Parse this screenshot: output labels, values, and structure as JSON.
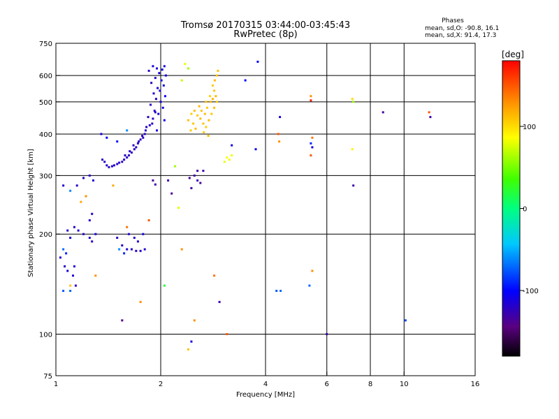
{
  "chart_data": {
    "type": "scatter",
    "title": "Tromsø 20170315 03:44:00-03:45:43",
    "subtitle": "RwPretec (8p)",
    "stats": {
      "heading": "Phases",
      "line1": "mean, sd,O: -90.8, 16.1",
      "line2": "mean, sd,X:  91.4, 17.3"
    },
    "xlabel": "Frequency [MHz]",
    "ylabel": "Stationary phase Virtual Height [km]",
    "xscale": "log",
    "yscale": "log",
    "xlim": [
      1,
      16
    ],
    "ylim": [
      75,
      750
    ],
    "xticks": [
      1,
      2,
      4,
      6,
      8,
      10,
      16
    ],
    "xtick_labels": [
      "1",
      "2",
      "4",
      "6",
      "8",
      "10",
      "16"
    ],
    "xgrid": [
      2,
      4,
      6,
      8,
      10
    ],
    "yticks": [
      75,
      100,
      200,
      300,
      400,
      500,
      600,
      750
    ],
    "ytick_labels": [
      "75",
      "100",
      "200",
      "300",
      "400",
      "500",
      "600",
      "750"
    ],
    "ygrid": [
      100,
      200,
      300,
      400,
      500,
      600
    ],
    "grid": true,
    "colorbar": {
      "label": "[deg]",
      "range": [
        -180,
        180
      ],
      "ticks": [
        100,
        0,
        -100
      ],
      "tick_labels": [
        "100",
        "0",
        "-100"
      ]
    },
    "points": [
      [
        1.9,
        640,
        -110
      ],
      [
        2.05,
        640,
        -110
      ],
      [
        1.95,
        630,
        -115
      ],
      [
        2.02,
        625,
        -105
      ],
      [
        1.85,
        620,
        -120
      ],
      [
        1.98,
        610,
        -112
      ],
      [
        2.07,
        600,
        -108
      ],
      [
        1.93,
        590,
        -118
      ],
      [
        2.01,
        580,
        -110
      ],
      [
        1.88,
        570,
        -122
      ],
      [
        2.04,
        560,
        -106
      ],
      [
        1.96,
        550,
        -114
      ],
      [
        1.99,
        540,
        -109
      ],
      [
        1.91,
        530,
        -116
      ],
      [
        2.06,
        520,
        -104
      ],
      [
        1.94,
        510,
        -113
      ],
      [
        2.0,
        500,
        -111
      ],
      [
        1.87,
        490,
        -119
      ],
      [
        2.03,
        480,
        -107
      ],
      [
        1.92,
        470,
        -117
      ],
      [
        1.97,
        460,
        -110
      ],
      [
        1.84,
        450,
        -121
      ],
      [
        2.05,
        440,
        -105
      ],
      [
        1.89,
        430,
        -118
      ],
      [
        1.82,
        420,
        -120
      ],
      [
        1.95,
        410,
        -112
      ],
      [
        1.8,
        400,
        -123
      ],
      [
        1.78,
        390,
        -122
      ],
      [
        1.75,
        385,
        -125
      ],
      [
        1.72,
        375,
        -120
      ],
      [
        1.7,
        365,
        -118
      ],
      [
        1.68,
        360,
        -122
      ],
      [
        1.65,
        352,
        -124
      ],
      [
        1.62,
        345,
        -119
      ],
      [
        1.6,
        340,
        -121
      ],
      [
        1.57,
        335,
        -117
      ],
      [
        1.55,
        330,
        -120
      ],
      [
        1.52,
        328,
        -118
      ],
      [
        1.5,
        325,
        -122
      ],
      [
        1.47,
        322,
        -116
      ],
      [
        1.45,
        320,
        -119
      ],
      [
        1.42,
        318,
        -121
      ],
      [
        1.4,
        322,
        -115
      ],
      [
        1.38,
        330,
        -118
      ],
      [
        1.36,
        335,
        -120
      ],
      [
        1.58,
        345,
        -117
      ],
      [
        1.63,
        355,
        -120
      ],
      [
        1.67,
        370,
        -122
      ],
      [
        1.73,
        380,
        -119
      ],
      [
        1.77,
        395,
        -121
      ],
      [
        1.81,
        410,
        -118
      ],
      [
        1.86,
        425,
        -116
      ],
      [
        1.9,
        445,
        -119
      ],
      [
        1.93,
        465,
        -117
      ],
      [
        1.35,
        400,
        -110
      ],
      [
        1.4,
        390,
        -105
      ],
      [
        1.6,
        410,
        -60
      ],
      [
        1.5,
        380,
        -95
      ],
      [
        1.25,
        300,
        -115
      ],
      [
        1.2,
        295,
        -118
      ],
      [
        1.28,
        290,
        -112
      ],
      [
        1.15,
        280,
        -120
      ],
      [
        1.1,
        270,
        -60
      ],
      [
        1.05,
        280,
        -115
      ],
      [
        1.13,
        210,
        -118
      ],
      [
        1.16,
        205,
        -114
      ],
      [
        1.2,
        200,
        -120
      ],
      [
        1.25,
        195,
        -116
      ],
      [
        1.27,
        190,
        -118
      ],
      [
        1.25,
        220,
        -114
      ],
      [
        1.27,
        230,
        -120
      ],
      [
        1.3,
        200,
        -110
      ],
      [
        1.08,
        205,
        -117
      ],
      [
        1.1,
        195,
        -112
      ],
      [
        1.05,
        180,
        -70
      ],
      [
        1.07,
        175,
        -90
      ],
      [
        1.03,
        170,
        -115
      ],
      [
        1.06,
        160,
        -118
      ],
      [
        1.12,
        150,
        -116
      ],
      [
        1.14,
        140,
        -120
      ],
      [
        1.1,
        135,
        -70
      ],
      [
        1.05,
        135,
        -75
      ],
      [
        1.08,
        155,
        -110
      ],
      [
        1.13,
        160,
        -116
      ],
      [
        1.5,
        195,
        -118
      ],
      [
        1.55,
        185,
        -120
      ],
      [
        1.6,
        180,
        -117
      ],
      [
        1.65,
        180,
        -119
      ],
      [
        1.7,
        178,
        -121
      ],
      [
        1.75,
        178,
        -115
      ],
      [
        1.8,
        180,
        -118
      ],
      [
        1.62,
        200,
        -115
      ],
      [
        1.68,
        195,
        -120
      ],
      [
        1.72,
        190,
        -117
      ],
      [
        1.52,
        180,
        -60
      ],
      [
        1.57,
        175,
        -90
      ],
      [
        1.78,
        200,
        -110
      ],
      [
        1.85,
        220,
        150
      ],
      [
        1.6,
        210,
        140
      ],
      [
        1.22,
        260,
        130
      ],
      [
        1.46,
        280,
        120
      ],
      [
        1.3,
        150,
        130
      ],
      [
        1.18,
        250,
        120
      ],
      [
        1.9,
        290,
        -135
      ],
      [
        1.93,
        282,
        -130
      ],
      [
        2.15,
        265,
        -135
      ],
      [
        2.1,
        290,
        -128
      ],
      [
        2.42,
        295,
        -135
      ],
      [
        2.5,
        300,
        -130
      ],
      [
        2.55,
        290,
        -125
      ],
      [
        2.6,
        285,
        -135
      ],
      [
        2.45,
        275,
        -130
      ],
      [
        2.65,
        310,
        -128
      ],
      [
        2.55,
        310,
        -132
      ],
      [
        2.4,
        440,
        110
      ],
      [
        2.45,
        460,
        105
      ],
      [
        2.5,
        470,
        112
      ],
      [
        2.55,
        455,
        108
      ],
      [
        2.6,
        445,
        115
      ],
      [
        2.65,
        430,
        110
      ],
      [
        2.7,
        420,
        106
      ],
      [
        2.75,
        440,
        113
      ],
      [
        2.8,
        460,
        109
      ],
      [
        2.85,
        480,
        112
      ],
      [
        2.9,
        500,
        108
      ],
      [
        2.88,
        520,
        114
      ],
      [
        2.85,
        540,
        110
      ],
      [
        2.82,
        560,
        107
      ],
      [
        2.86,
        580,
        113
      ],
      [
        2.9,
        600,
        109
      ],
      [
        2.92,
        620,
        111
      ],
      [
        2.78,
        500,
        115
      ],
      [
        2.72,
        480,
        108
      ],
      [
        2.68,
        460,
        112
      ],
      [
        2.62,
        470,
        109
      ],
      [
        2.58,
        485,
        113
      ],
      [
        2.48,
        430,
        110
      ],
      [
        2.44,
        410,
        107
      ],
      [
        2.52,
        415,
        112
      ],
      [
        2.66,
        405,
        108
      ],
      [
        2.74,
        395,
        111
      ],
      [
        2.82,
        510,
        116
      ],
      [
        2.77,
        520,
        104
      ],
      [
        2.7,
        500,
        110
      ],
      [
        3.1,
        340,
        85
      ],
      [
        3.15,
        335,
        90
      ],
      [
        3.05,
        330,
        80
      ],
      [
        3.2,
        345,
        82
      ],
      [
        2.35,
        650,
        80
      ],
      [
        2.4,
        630,
        60
      ],
      [
        2.3,
        580,
        70
      ],
      [
        2.2,
        320,
        60
      ],
      [
        2.25,
        240,
        80
      ],
      [
        2.3,
        180,
        130
      ],
      [
        2.05,
        140,
        20
      ],
      [
        2.5,
        110,
        130
      ],
      [
        2.4,
        90,
        110
      ],
      [
        3.1,
        100,
        150
      ],
      [
        2.85,
        150,
        140
      ],
      [
        3.2,
        370,
        -110
      ],
      [
        3.5,
        580,
        -100
      ],
      [
        3.75,
        360,
        -105
      ],
      [
        3.8,
        660,
        -100
      ],
      [
        4.4,
        450,
        -110
      ],
      [
        4.35,
        400,
        150
      ],
      [
        4.38,
        380,
        130
      ],
      [
        4.42,
        135,
        -70
      ],
      [
        4.3,
        135,
        -75
      ],
      [
        2.95,
        125,
        -130
      ],
      [
        5.4,
        520,
        130
      ],
      [
        5.4,
        505,
        170
      ],
      [
        5.45,
        390,
        140
      ],
      [
        5.4,
        375,
        -90
      ],
      [
        5.45,
        365,
        -110
      ],
      [
        5.4,
        345,
        150
      ],
      [
        5.45,
        155,
        130
      ],
      [
        5.35,
        140,
        -70
      ],
      [
        6.0,
        100,
        -130
      ],
      [
        7.1,
        510,
        100
      ],
      [
        7.15,
        500,
        60
      ],
      [
        7.1,
        360,
        90
      ],
      [
        7.15,
        280,
        -130
      ],
      [
        8.7,
        465,
        -130
      ],
      [
        10.1,
        110,
        -80
      ],
      [
        11.8,
        465,
        150
      ],
      [
        11.9,
        450,
        -130
      ],
      [
        2.45,
        95,
        -110
      ],
      [
        1.55,
        110,
        -140
      ],
      [
        1.75,
        125,
        130
      ],
      [
        1.1,
        140,
        110
      ]
    ]
  }
}
